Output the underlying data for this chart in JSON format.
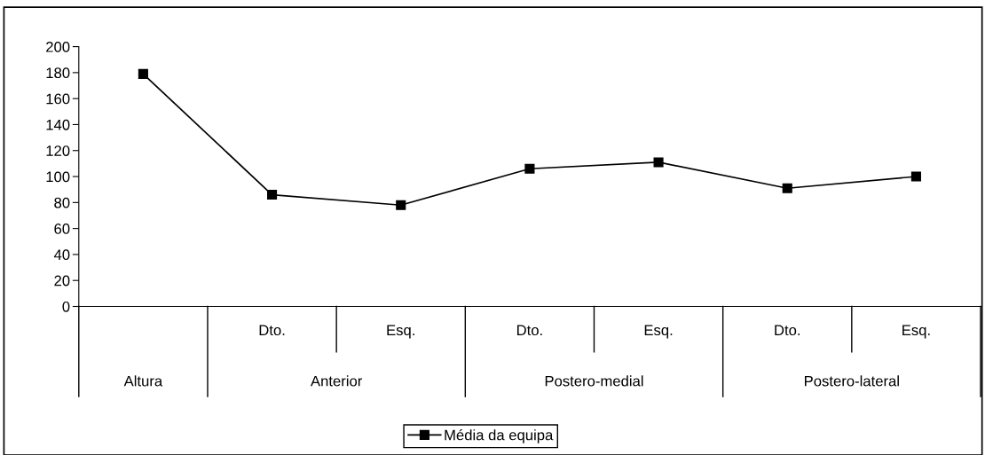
{
  "chart_data": {
    "type": "line",
    "categories": [
      null,
      "Dto.",
      "Esq.",
      "Dto.",
      "Esq.",
      "Dto.",
      "Esq."
    ],
    "annotations": [
      "Altura",
      "Anterior",
      "Postero-medial",
      "Postero-lateral"
    ],
    "series": [
      {
        "name": "Média da equipa",
        "color": "#000000",
        "values": [
          179,
          86,
          78,
          106,
          111,
          91,
          100
        ]
      }
    ],
    "ylim": [
      0,
      200
    ],
    "yticks": [
      0,
      20,
      40,
      60,
      80,
      100,
      120,
      140,
      160,
      180,
      200
    ],
    "marker": "square",
    "line_style": "solid",
    "legend": "bottom",
    "grid": false
  }
}
